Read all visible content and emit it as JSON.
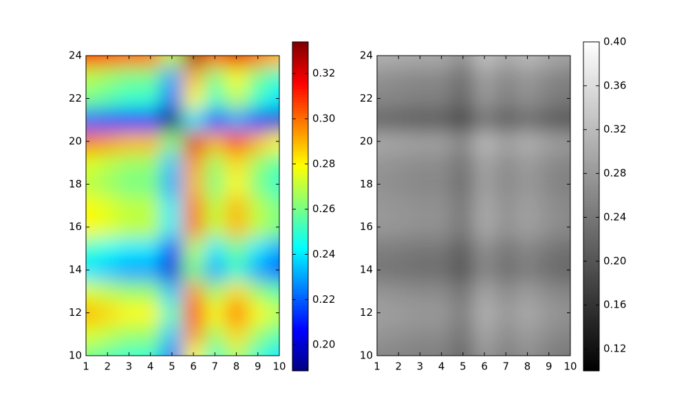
{
  "chart_data": [
    {
      "type": "heatmap",
      "colormap": "jet",
      "x": [
        1,
        2,
        3,
        4,
        5,
        6,
        7,
        8,
        9,
        10
      ],
      "y": [
        10,
        11,
        12,
        13,
        14,
        15,
        16,
        17,
        18,
        19,
        20,
        21,
        22,
        23,
        24
      ],
      "z": [
        [
          0.26,
          0.255,
          0.25,
          0.25,
          0.22,
          0.28,
          0.25,
          0.27,
          0.25,
          0.24
        ],
        [
          0.275,
          0.27,
          0.265,
          0.265,
          0.235,
          0.295,
          0.265,
          0.285,
          0.265,
          0.255
        ],
        [
          0.29,
          0.285,
          0.28,
          0.28,
          0.25,
          0.31,
          0.28,
          0.3,
          0.28,
          0.27
        ],
        [
          0.275,
          0.27,
          0.265,
          0.265,
          0.235,
          0.295,
          0.265,
          0.285,
          0.265,
          0.255
        ],
        [
          0.24,
          0.235,
          0.23,
          0.23,
          0.2,
          0.26,
          0.23,
          0.25,
          0.23,
          0.22
        ],
        [
          0.25,
          0.245,
          0.24,
          0.24,
          0.21,
          0.27,
          0.24,
          0.26,
          0.24,
          0.23
        ],
        [
          0.28,
          0.275,
          0.27,
          0.27,
          0.24,
          0.3,
          0.27,
          0.29,
          0.27,
          0.26
        ],
        [
          0.28,
          0.275,
          0.27,
          0.27,
          0.24,
          0.3,
          0.27,
          0.29,
          0.27,
          0.26
        ],
        [
          0.27,
          0.265,
          0.26,
          0.26,
          0.23,
          0.29,
          0.26,
          0.28,
          0.26,
          0.25
        ],
        [
          0.275,
          0.27,
          0.265,
          0.265,
          0.235,
          0.295,
          0.265,
          0.285,
          0.265,
          0.255
        ],
        [
          0.3,
          0.295,
          0.29,
          0.29,
          0.26,
          0.32,
          0.29,
          0.31,
          0.29,
          0.28
        ],
        [
          0.22,
          0.215,
          0.21,
          0.21,
          0.18,
          0.24,
          0.21,
          0.23,
          0.21,
          0.2
        ],
        [
          0.26,
          0.255,
          0.25,
          0.25,
          0.22,
          0.28,
          0.25,
          0.27,
          0.25,
          0.24
        ],
        [
          0.27,
          0.265,
          0.26,
          0.26,
          0.23,
          0.29,
          0.26,
          0.28,
          0.26,
          0.25
        ],
        [
          0.31,
          0.305,
          0.3,
          0.3,
          0.27,
          0.33,
          0.3,
          0.32,
          0.3,
          0.29
        ]
      ],
      "xlim": [
        1,
        10
      ],
      "ylim": [
        10,
        24
      ],
      "xticks": [
        1,
        2,
        3,
        4,
        5,
        6,
        7,
        8,
        9,
        10
      ],
      "yticks": [
        10,
        12,
        14,
        16,
        18,
        20,
        22,
        24
      ],
      "clim": [
        0.1885,
        0.334
      ],
      "cticks": [
        {
          "value": 0.2,
          "label": "0.20"
        },
        0.22,
        0.24,
        0.26,
        0.28,
        {
          "value": 0.3,
          "label": "0.30"
        },
        0.32
      ]
    },
    {
      "type": "heatmap",
      "colormap": "gray",
      "x": [
        1,
        2,
        3,
        4,
        5,
        6,
        7,
        8,
        9,
        10
      ],
      "y": [
        10,
        11,
        12,
        13,
        14,
        15,
        16,
        17,
        18,
        19,
        20,
        21,
        22,
        23,
        24
      ],
      "z": [
        [
          0.26,
          0.255,
          0.25,
          0.25,
          0.22,
          0.28,
          0.25,
          0.27,
          0.25,
          0.24
        ],
        [
          0.275,
          0.27,
          0.265,
          0.265,
          0.235,
          0.295,
          0.265,
          0.285,
          0.265,
          0.255
        ],
        [
          0.29,
          0.285,
          0.28,
          0.28,
          0.25,
          0.31,
          0.28,
          0.3,
          0.28,
          0.27
        ],
        [
          0.275,
          0.27,
          0.265,
          0.265,
          0.235,
          0.295,
          0.265,
          0.285,
          0.265,
          0.255
        ],
        [
          0.24,
          0.235,
          0.23,
          0.23,
          0.2,
          0.26,
          0.23,
          0.25,
          0.23,
          0.22
        ],
        [
          0.25,
          0.245,
          0.24,
          0.24,
          0.21,
          0.27,
          0.24,
          0.26,
          0.24,
          0.23
        ],
        [
          0.28,
          0.275,
          0.27,
          0.27,
          0.24,
          0.3,
          0.27,
          0.29,
          0.27,
          0.26
        ],
        [
          0.28,
          0.275,
          0.27,
          0.27,
          0.24,
          0.3,
          0.27,
          0.29,
          0.27,
          0.26
        ],
        [
          0.27,
          0.265,
          0.26,
          0.26,
          0.23,
          0.29,
          0.26,
          0.28,
          0.26,
          0.25
        ],
        [
          0.275,
          0.27,
          0.265,
          0.265,
          0.235,
          0.295,
          0.265,
          0.285,
          0.265,
          0.255
        ],
        [
          0.3,
          0.295,
          0.29,
          0.29,
          0.26,
          0.32,
          0.29,
          0.31,
          0.29,
          0.28
        ],
        [
          0.22,
          0.215,
          0.21,
          0.21,
          0.18,
          0.24,
          0.21,
          0.23,
          0.21,
          0.2
        ],
        [
          0.26,
          0.255,
          0.25,
          0.25,
          0.22,
          0.28,
          0.25,
          0.27,
          0.25,
          0.24
        ],
        [
          0.27,
          0.265,
          0.26,
          0.26,
          0.23,
          0.29,
          0.26,
          0.28,
          0.26,
          0.25
        ],
        [
          0.31,
          0.305,
          0.3,
          0.3,
          0.27,
          0.33,
          0.3,
          0.32,
          0.3,
          0.29
        ]
      ],
      "xlim": [
        1,
        10
      ],
      "ylim": [
        10,
        24
      ],
      "xticks": [
        1,
        2,
        3,
        4,
        5,
        6,
        7,
        8,
        9,
        10
      ],
      "yticks": [
        10,
        12,
        14,
        16,
        18,
        20,
        22,
        24
      ],
      "clim": [
        0.1,
        0.4
      ],
      "cticks": [
        0.12,
        0.16,
        {
          "value": 0.2,
          "label": "0.20"
        },
        0.24,
        0.28,
        0.32,
        0.36,
        {
          "value": 0.4,
          "label": "0.40"
        }
      ]
    }
  ]
}
